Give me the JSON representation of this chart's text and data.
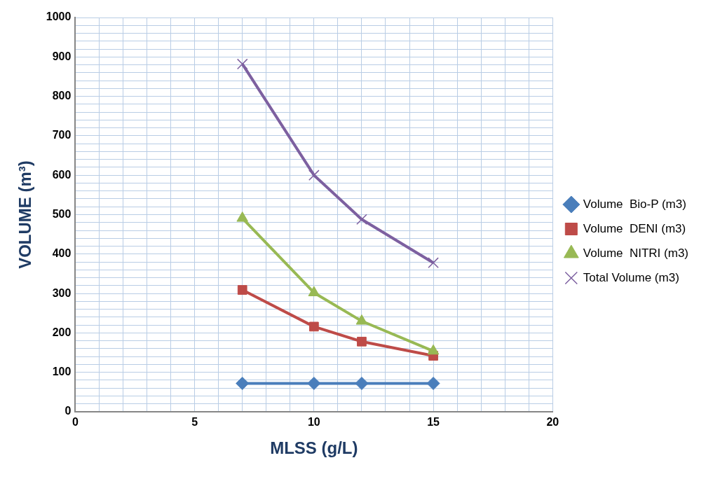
{
  "chart_data": {
    "type": "line",
    "xlabel": "MLSS (g/L)",
    "ylabel": "VOLUME (m³)",
    "x": [
      7,
      10,
      12,
      15
    ],
    "series": [
      {
        "name": "Volume  Bio-P (m3)",
        "color": "#4a7ebb",
        "marker": "diamond",
        "values": [
          72,
          72,
          72,
          72
        ]
      },
      {
        "name": "Volume  DENI (m3)",
        "color": "#be4b48",
        "marker": "square",
        "values": [
          309,
          216,
          178,
          142
        ]
      },
      {
        "name": "Volume  NITRI (m3)",
        "color": "#98b954",
        "marker": "triangle",
        "values": [
          491,
          302,
          230,
          154
        ]
      },
      {
        "name": "Total Volume (m3)",
        "color": "#7d60a0",
        "marker": "cross",
        "values": [
          882,
          600,
          488,
          378
        ]
      }
    ],
    "xlim": [
      0,
      20
    ],
    "xticks": [
      0,
      {
        "value": 1,
        "label": null
      },
      {
        "value": 2,
        "label": null
      },
      {
        "value": 3,
        "label": null
      },
      {
        "value": 4,
        "label": null
      },
      5,
      {
        "value": 6,
        "label": null
      },
      {
        "value": 7,
        "label": null
      },
      {
        "value": 8,
        "label": null
      },
      {
        "value": 9,
        "label": null
      },
      10,
      {
        "value": 11,
        "label": null
      },
      {
        "value": 12,
        "label": null
      },
      {
        "value": 13,
        "label": null
      },
      {
        "value": 14,
        "label": null
      },
      15,
      {
        "value": 16,
        "label": null
      },
      {
        "value": 17,
        "label": null
      },
      {
        "value": 18,
        "label": null
      },
      {
        "value": 19,
        "label": null
      },
      20
    ],
    "ylim": [
      0,
      1000
    ],
    "yticks": [
      0,
      {
        "value": 20,
        "label": null
      },
      {
        "value": 40,
        "label": null
      },
      {
        "value": 60,
        "label": null
      },
      {
        "value": 80,
        "label": null
      },
      100,
      {
        "value": 120,
        "label": null
      },
      {
        "value": 140,
        "label": null
      },
      {
        "value": 160,
        "label": null
      },
      {
        "value": 180,
        "label": null
      },
      200,
      {
        "value": 220,
        "label": null
      },
      {
        "value": 240,
        "label": null
      },
      {
        "value": 260,
        "label": null
      },
      {
        "value": 280,
        "label": null
      },
      300,
      {
        "value": 320,
        "label": null
      },
      {
        "value": 340,
        "label": null
      },
      {
        "value": 360,
        "label": null
      },
      {
        "value": 380,
        "label": null
      },
      400,
      {
        "value": 420,
        "label": null
      },
      {
        "value": 440,
        "label": null
      },
      {
        "value": 460,
        "label": null
      },
      {
        "value": 480,
        "label": null
      },
      500,
      {
        "value": 520,
        "label": null
      },
      {
        "value": 540,
        "label": null
      },
      {
        "value": 560,
        "label": null
      },
      {
        "value": 580,
        "label": null
      },
      600,
      {
        "value": 620,
        "label": null
      },
      {
        "value": 640,
        "label": null
      },
      {
        "value": 660,
        "label": null
      },
      {
        "value": 680,
        "label": null
      },
      700,
      {
        "value": 720,
        "label": null
      },
      {
        "value": 740,
        "label": null
      },
      {
        "value": 760,
        "label": null
      },
      {
        "value": 780,
        "label": null
      },
      800,
      {
        "value": 820,
        "label": null
      },
      {
        "value": 840,
        "label": null
      },
      {
        "value": 860,
        "label": null
      },
      {
        "value": 880,
        "label": null
      },
      900,
      {
        "value": 920,
        "label": null
      },
      {
        "value": 940,
        "label": null
      },
      {
        "value": 960,
        "label": null
      },
      {
        "value": 980,
        "label": null
      },
      1000
    ],
    "grid": true,
    "legend": "right",
    "line_style": "solid"
  }
}
